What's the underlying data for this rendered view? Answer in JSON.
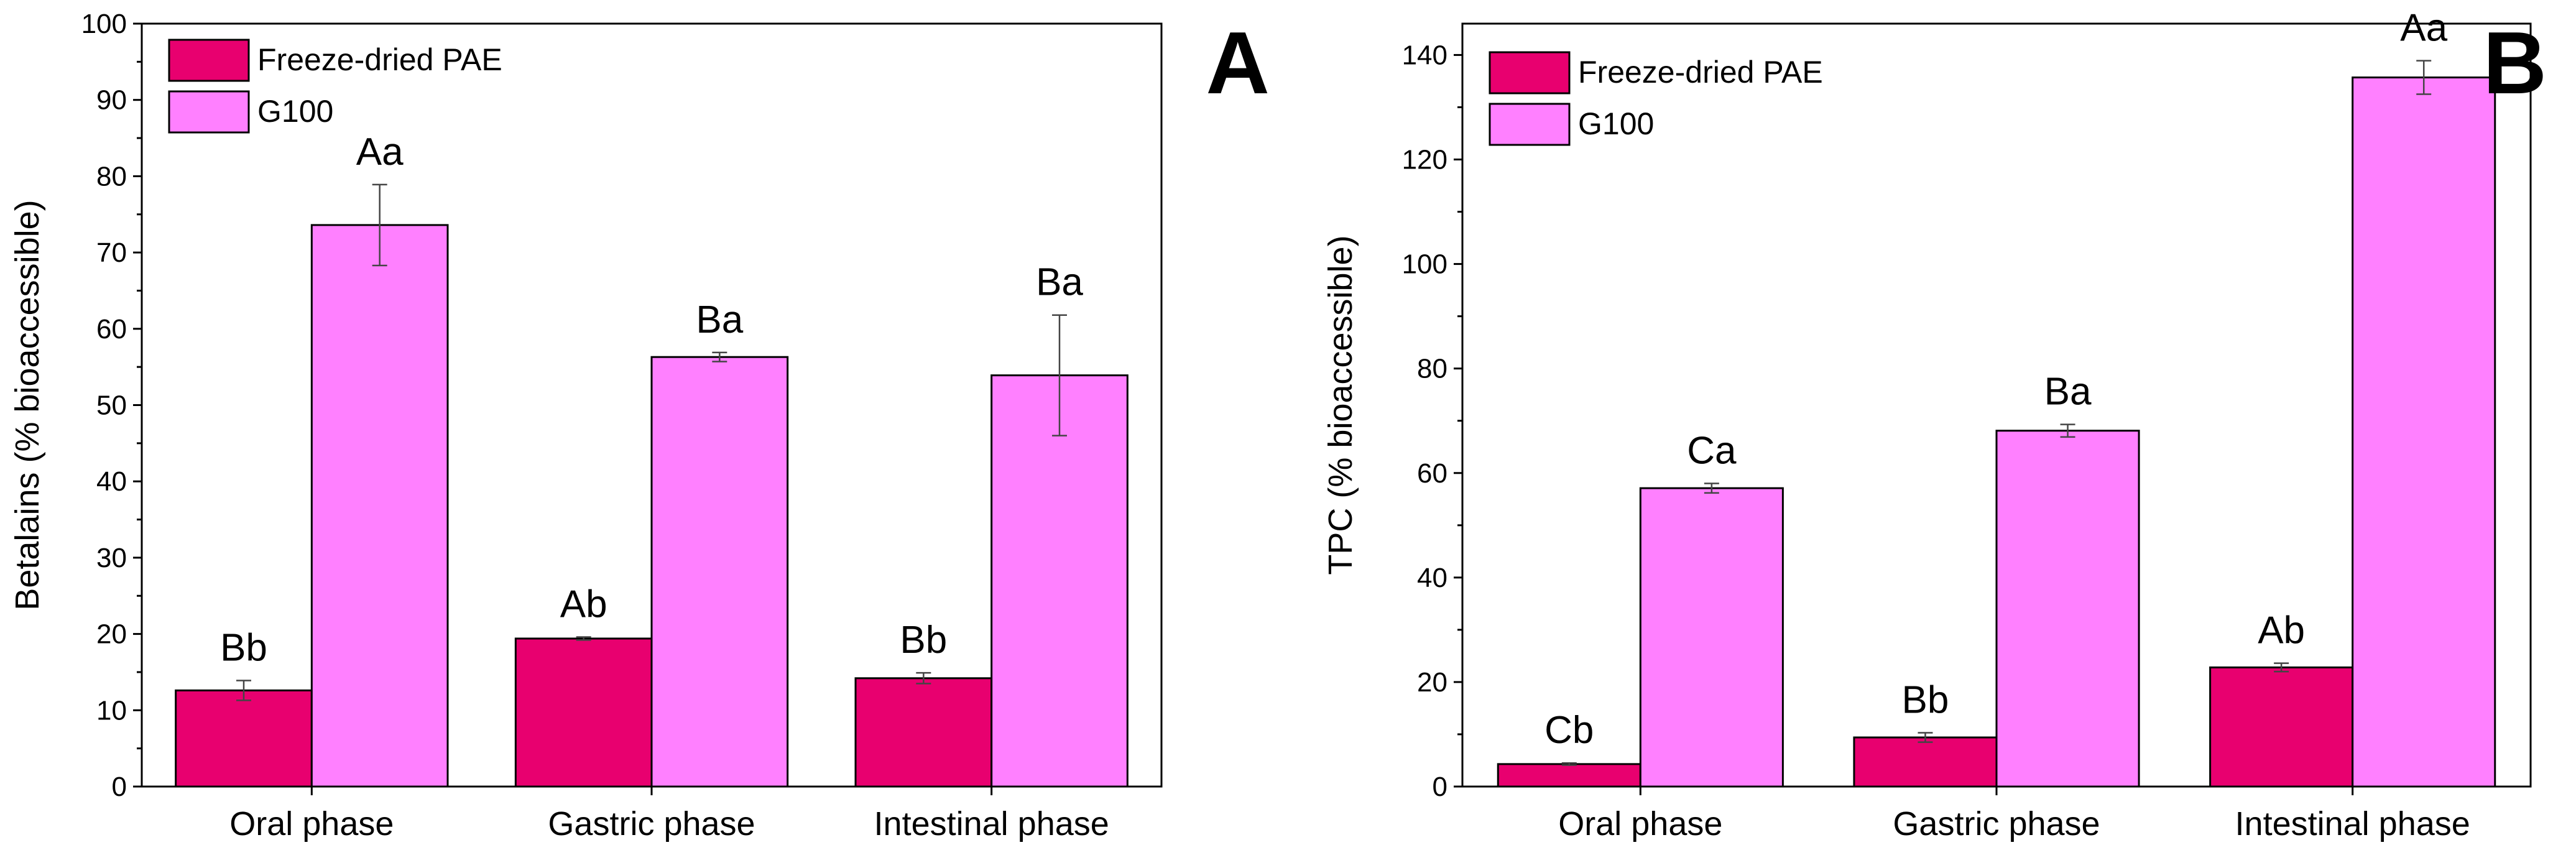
{
  "chart_data": [
    {
      "type": "bar",
      "panel_label": "A",
      "categories": [
        "Oral phase",
        "Gastric phase",
        "Intestinal phase"
      ],
      "series": [
        {
          "name": "Freeze-dried PAE",
          "values": [
            12.6,
            19.4,
            14.2
          ],
          "errors": [
            1.3,
            0.2,
            0.7
          ],
          "labels": [
            "Bb",
            "Ab",
            "Bb"
          ]
        },
        {
          "name": "G100",
          "values": [
            73.6,
            56.3,
            53.9
          ],
          "errors": [
            5.3,
            0.6,
            7.9
          ],
          "labels": [
            "Aa",
            "Ba",
            "Ba"
          ]
        }
      ],
      "xlabel": "",
      "ylabel": "Betalains (% bioaccessible)",
      "ylim": [
        0,
        100
      ],
      "yticks": [
        0,
        10,
        20,
        30,
        40,
        50,
        60,
        70,
        80,
        90,
        100
      ],
      "legend": "top-left",
      "grid": false
    },
    {
      "type": "bar",
      "panel_label": "B",
      "categories": [
        "Oral phase",
        "Gastric phase",
        "Intestinal phase"
      ],
      "series": [
        {
          "name": "Freeze-dried PAE",
          "values": [
            4.3,
            9.4,
            22.8
          ],
          "errors": [
            0.2,
            0.9,
            0.8
          ],
          "labels": [
            "Cb",
            "Bb",
            "Ab"
          ]
        },
        {
          "name": "G100",
          "values": [
            57.1,
            68.1,
            135.7
          ],
          "errors": [
            0.9,
            1.2,
            3.2
          ],
          "labels": [
            "Ca",
            "Ba",
            "Aa"
          ]
        }
      ],
      "xlabel": "",
      "ylabel": "TPC (% bioaccessible)",
      "ylim": [
        0,
        146
      ],
      "yticks": [
        0,
        20,
        40,
        60,
        80,
        100,
        120,
        140
      ],
      "legend": "top-left",
      "grid": false
    }
  ],
  "colors": {
    "series_1": "#e8006f",
    "series_2": "#ff80ff",
    "outline": "#000000"
  }
}
